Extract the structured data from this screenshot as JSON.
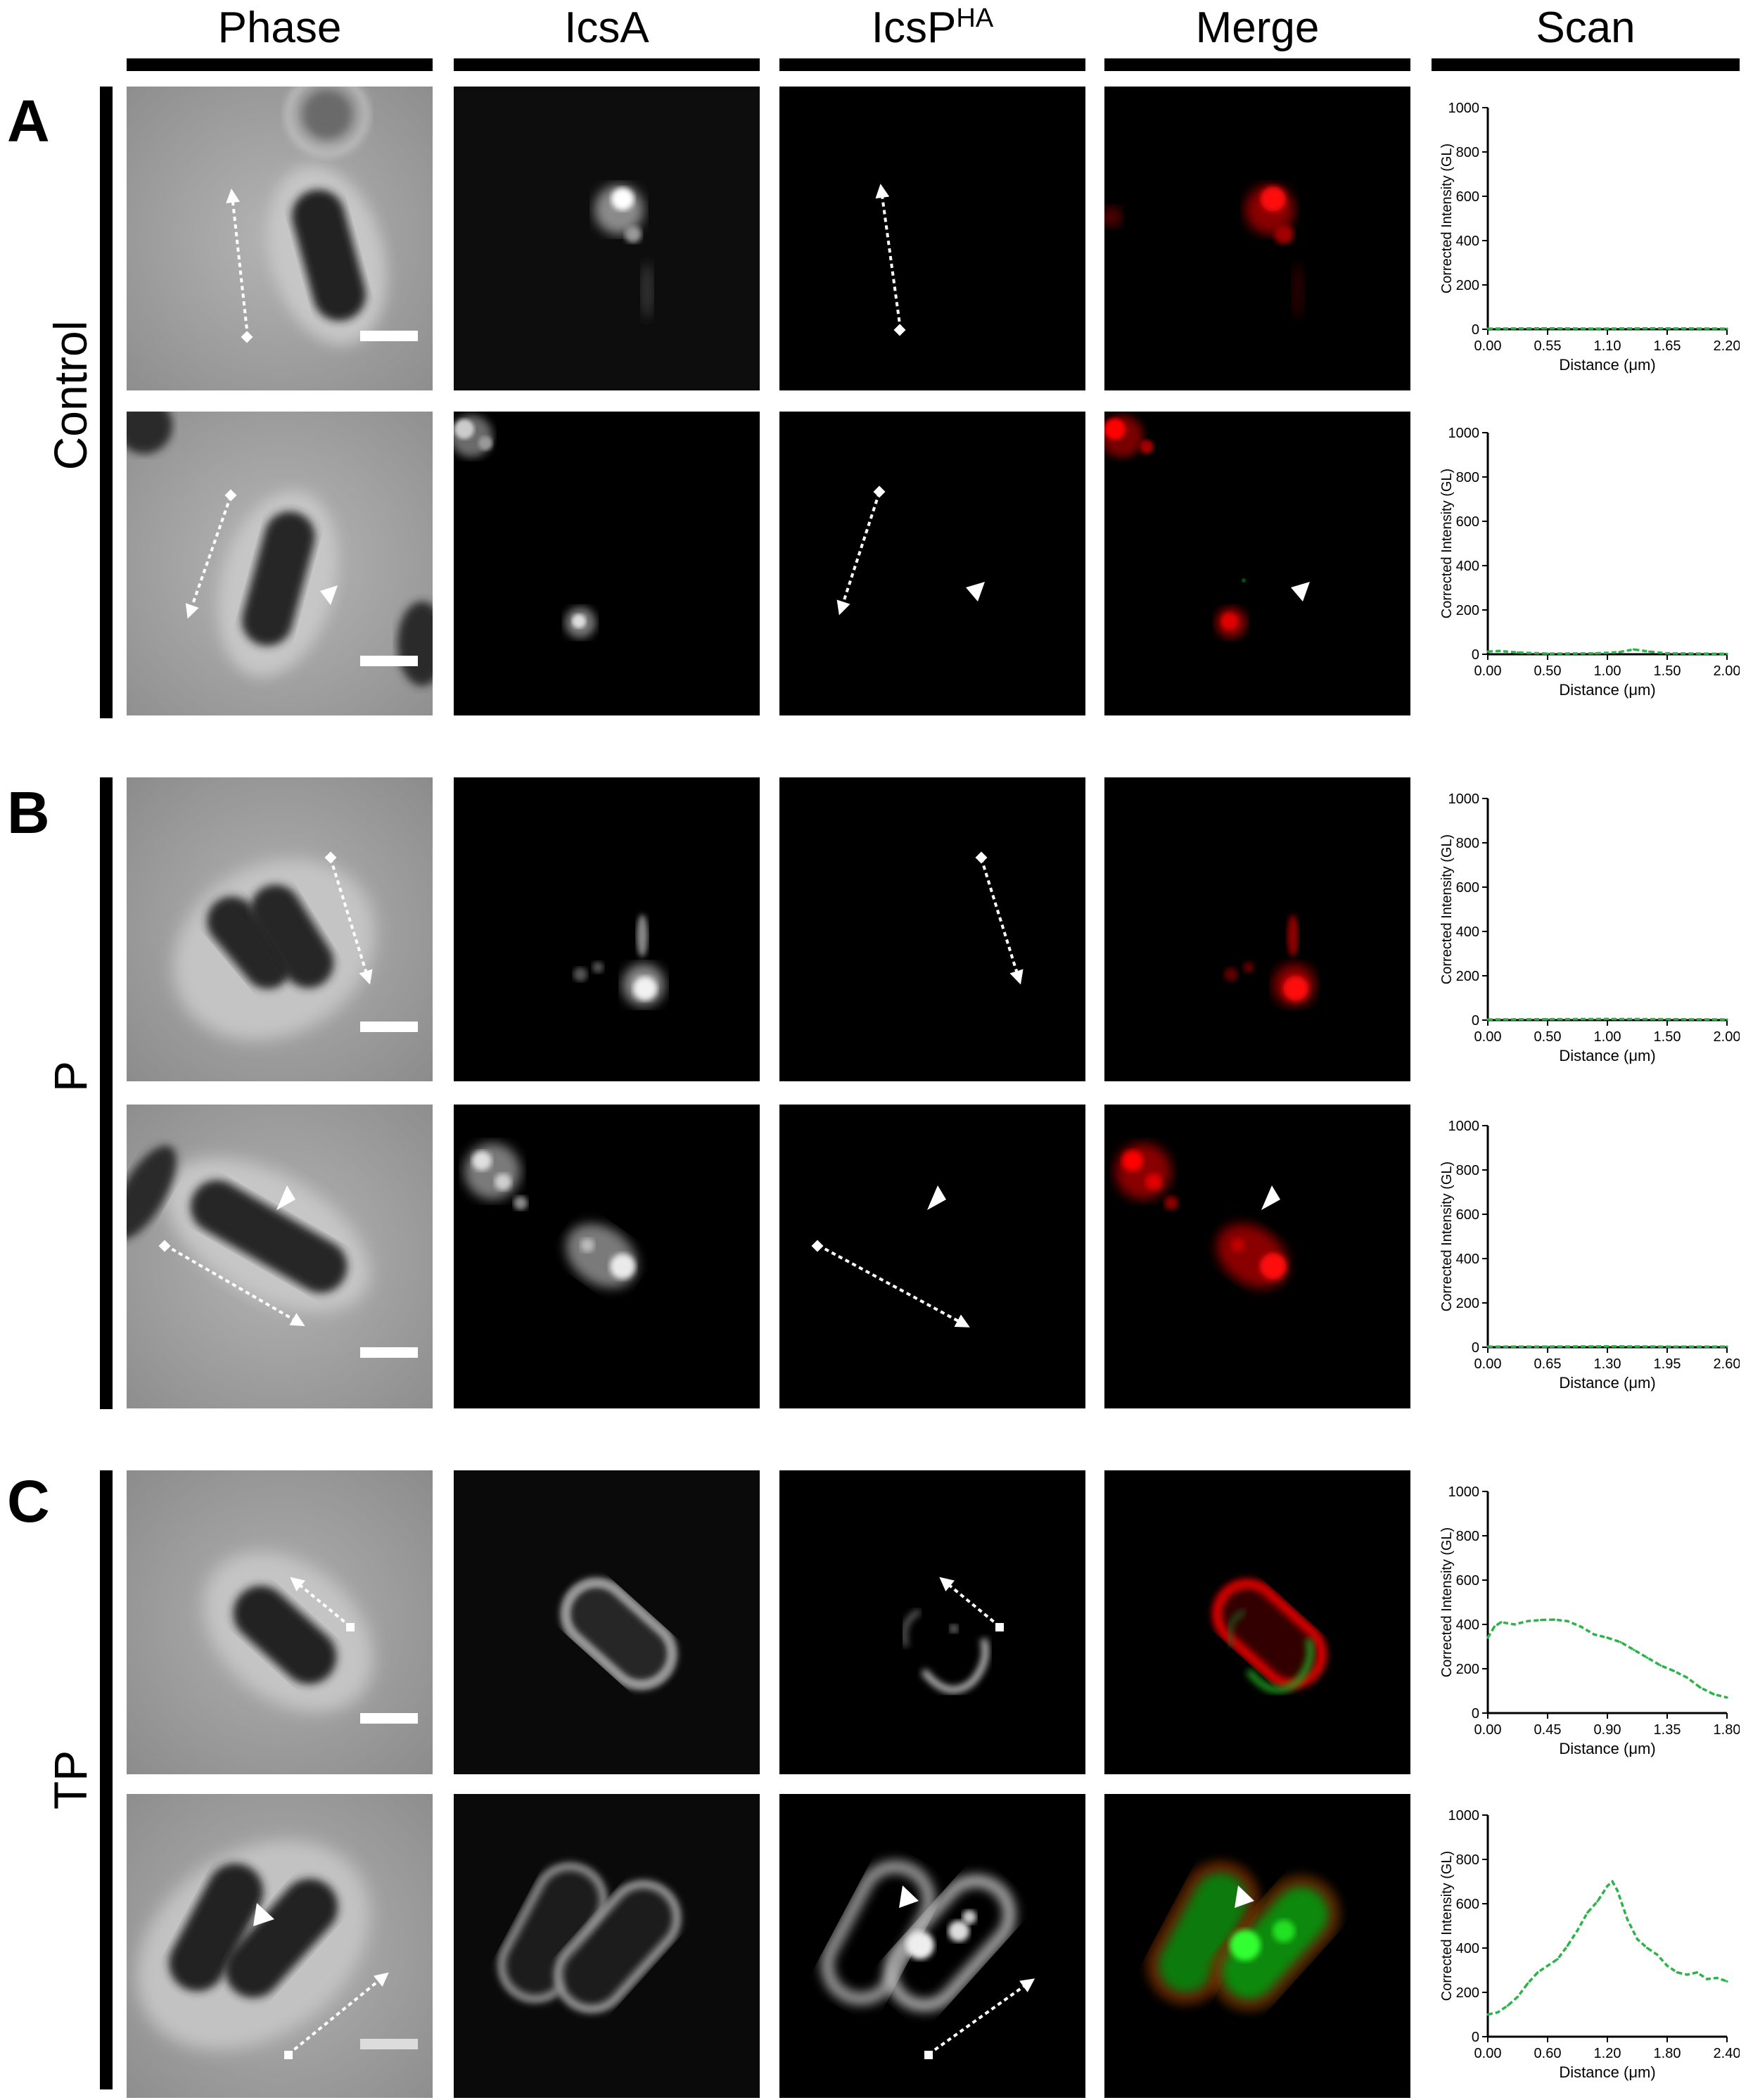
{
  "columns": {
    "phase": "Phase",
    "icsa": "IcsA",
    "icsp_main": "IcsP",
    "icsp_sup": "HA",
    "merge": "Merge",
    "scan": "Scan"
  },
  "panels": [
    {
      "letter": "A",
      "label": "Control"
    },
    {
      "letter": "B",
      "label": "P"
    },
    {
      "letter": "C",
      "label": "TP"
    }
  ],
  "colors": {
    "icsa_channel": "#ff0000",
    "icsp_channel": "#00ff00",
    "scan_line": "#2db34a"
  },
  "chart_data": [
    {
      "type": "line",
      "panel": "A",
      "row": 1,
      "ylabel": "Corrected Intensity (GL)",
      "xlabel": "Distance (μm)",
      "ylim": [
        0,
        1000
      ],
      "yticks": [
        "0",
        "200",
        "400",
        "600",
        "800",
        "1000"
      ],
      "xticks": [
        "0.00",
        "0.55",
        "1.10",
        "1.65",
        "2.20"
      ],
      "xlim": [
        0,
        2.2
      ],
      "series": [
        {
          "color": "#2db34a",
          "points": [
            [
              0,
              3
            ],
            [
              0.5,
              4
            ],
            [
              1.0,
              3
            ],
            [
              1.5,
              4
            ],
            [
              2.2,
              3
            ]
          ]
        }
      ]
    },
    {
      "type": "line",
      "panel": "A",
      "row": 2,
      "ylabel": "Corrected Intensity (GL)",
      "xlabel": "Distance (μm)",
      "ylim": [
        0,
        1000
      ],
      "yticks": [
        "0",
        "200",
        "400",
        "600",
        "800",
        "1000"
      ],
      "xticks": [
        "0.00",
        "0.50",
        "1.00",
        "1.50",
        "2.00"
      ],
      "xlim": [
        0,
        2.0
      ],
      "series": [
        {
          "color": "#2db34a",
          "points": [
            [
              0,
              12
            ],
            [
              0.1,
              15
            ],
            [
              0.25,
              8
            ],
            [
              0.5,
              3
            ],
            [
              0.9,
              4
            ],
            [
              1.1,
              10
            ],
            [
              1.22,
              22
            ],
            [
              1.35,
              12
            ],
            [
              1.5,
              4
            ],
            [
              2.0,
              2
            ]
          ]
        }
      ]
    },
    {
      "type": "line",
      "panel": "B",
      "row": 1,
      "ylabel": "Corrected Intensity (GL)",
      "xlabel": "Distance (μm)",
      "ylim": [
        0,
        1000
      ],
      "yticks": [
        "0",
        "200",
        "400",
        "600",
        "800",
        "1000"
      ],
      "xticks": [
        "0.00",
        "0.50",
        "1.00",
        "1.50",
        "2.00"
      ],
      "xlim": [
        0,
        2.0
      ],
      "series": [
        {
          "color": "#2db34a",
          "points": [
            [
              0,
              3
            ],
            [
              0.5,
              4
            ],
            [
              1.0,
              5
            ],
            [
              1.5,
              4
            ],
            [
              2.0,
              3
            ]
          ]
        }
      ]
    },
    {
      "type": "line",
      "panel": "B",
      "row": 2,
      "ylabel": "Corrected Intensity (GL)",
      "xlabel": "Distance (μm)",
      "ylim": [
        0,
        1000
      ],
      "yticks": [
        "0",
        "200",
        "400",
        "600",
        "800",
        "1000"
      ],
      "xticks": [
        "0.00",
        "0.65",
        "1.30",
        "1.95",
        "2.60"
      ],
      "xlim": [
        0,
        2.6
      ],
      "series": [
        {
          "color": "#2db34a",
          "points": [
            [
              0,
              3
            ],
            [
              0.65,
              3
            ],
            [
              1.3,
              4
            ],
            [
              1.95,
              3
            ],
            [
              2.6,
              3
            ]
          ]
        }
      ]
    },
    {
      "type": "line",
      "panel": "C",
      "row": 1,
      "ylabel": "Corrected Intensity (GL)",
      "xlabel": "Distance (μm)",
      "ylim": [
        0,
        1000
      ],
      "yticks": [
        "0",
        "200",
        "400",
        "600",
        "800",
        "1000"
      ],
      "xticks": [
        "0.00",
        "0.45",
        "0.90",
        "1.35",
        "1.80"
      ],
      "xlim": [
        0,
        1.8
      ],
      "series": [
        {
          "color": "#2db34a",
          "points": [
            [
              0,
              340
            ],
            [
              0.05,
              390
            ],
            [
              0.1,
              410
            ],
            [
              0.2,
              400
            ],
            [
              0.3,
              415
            ],
            [
              0.4,
              420
            ],
            [
              0.5,
              422
            ],
            [
              0.6,
              415
            ],
            [
              0.7,
              390
            ],
            [
              0.8,
              355
            ],
            [
              0.9,
              340
            ],
            [
              1.0,
              320
            ],
            [
              1.1,
              285
            ],
            [
              1.2,
              250
            ],
            [
              1.3,
              215
            ],
            [
              1.4,
              190
            ],
            [
              1.5,
              160
            ],
            [
              1.6,
              115
            ],
            [
              1.7,
              85
            ],
            [
              1.8,
              70
            ]
          ]
        }
      ]
    },
    {
      "type": "line",
      "panel": "C",
      "row": 2,
      "ylabel": "Corrected Intensity (GL)",
      "xlabel": "Distance (μm)",
      "ylim": [
        0,
        1000
      ],
      "yticks": [
        "0",
        "200",
        "400",
        "600",
        "800",
        "1000"
      ],
      "xticks": [
        "0.00",
        "0.60",
        "1.20",
        "1.80",
        "2.40"
      ],
      "xlim": [
        0,
        2.4
      ],
      "series": [
        {
          "color": "#2db34a",
          "points": [
            [
              0,
              100
            ],
            [
              0.1,
              110
            ],
            [
              0.2,
              140
            ],
            [
              0.3,
              180
            ],
            [
              0.4,
              240
            ],
            [
              0.5,
              290
            ],
            [
              0.6,
              320
            ],
            [
              0.7,
              350
            ],
            [
              0.8,
              410
            ],
            [
              0.9,
              480
            ],
            [
              1.0,
              560
            ],
            [
              1.1,
              610
            ],
            [
              1.2,
              680
            ],
            [
              1.25,
              700
            ],
            [
              1.3,
              660
            ],
            [
              1.4,
              530
            ],
            [
              1.5,
              440
            ],
            [
              1.6,
              400
            ],
            [
              1.7,
              370
            ],
            [
              1.8,
              320
            ],
            [
              1.9,
              290
            ],
            [
              2.0,
              280
            ],
            [
              2.1,
              290
            ],
            [
              2.2,
              260
            ],
            [
              2.3,
              265
            ],
            [
              2.4,
              250
            ]
          ]
        }
      ]
    }
  ]
}
